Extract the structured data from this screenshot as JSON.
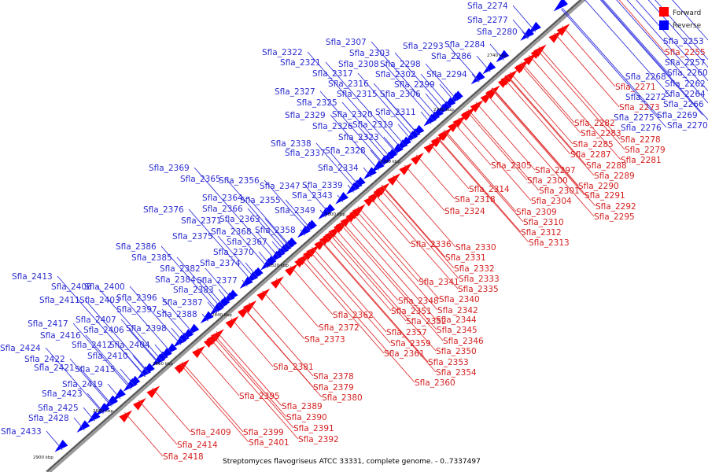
{
  "legend": [
    {
      "label": "Forward",
      "color": "#ff0000"
    },
    {
      "label": "Reverse",
      "color": "#0000ff"
    }
  ],
  "caption": "Streptomyces flavogriseus ATCC 33331, complete genome. - 0..7337497",
  "scale_labels": [
    "2740 kbp",
    "2760 kbp",
    "2780 kbp",
    "2800 kbp",
    "2820 kbp",
    "2840 kbp",
    "2860 kbp",
    "2880 kbp",
    "2900 kbp"
  ],
  "reverse_genes": [
    "Sfla_2253",
    "Sfla_2257",
    "Sfla_2260",
    "Sfla_2262",
    "Sfla_2264",
    "Sfla_2266",
    "Sfla_2268",
    "Sfla_2269",
    "Sfla_2270",
    "Sfla_2272",
    "Sfla_2274",
    "Sfla_2275",
    "Sfla_2276",
    "Sfla_2277",
    "Sfla_2280",
    "Sfla_2284",
    "Sfla_2286",
    "Sfla_2293",
    "Sfla_2294",
    "Sfla_2298",
    "Sfla_2299",
    "Sfla_2302",
    "Sfla_2303",
    "Sfla_2306",
    "Sfla_2307",
    "Sfla_2308",
    "Sfla_2311",
    "Sfla_2315",
    "Sfla_2316",
    "Sfla_2317",
    "Sfla_2319",
    "Sfla_2320",
    "Sfla_2321",
    "Sfla_2322",
    "Sfla_2323",
    "Sfla_2325",
    "Sfla_2326",
    "Sfla_2327",
    "Sfla_2328",
    "Sfla_2329",
    "Sfla_2334",
    "Sfla_2337",
    "Sfla_2338",
    "Sfla_2339",
    "Sfla_2343",
    "Sfla_2347",
    "Sfla_2349",
    "Sfla_2355",
    "Sfla_2356",
    "Sfla_2358",
    "Sfla_2363",
    "Sfla_2364",
    "Sfla_2365",
    "Sfla_2366",
    "Sfla_2367",
    "Sfla_2368",
    "Sfla_2369",
    "Sfla_2370",
    "Sfla_2371",
    "Sfla_2374",
    "Sfla_2375",
    "Sfla_2376",
    "Sfla_2377",
    "Sfla_2382",
    "Sfla_2383",
    "Sfla_2384",
    "Sfla_2385",
    "Sfla_2386",
    "Sfla_2387",
    "Sfla_2388",
    "Sfla_2396",
    "Sfla_2397",
    "Sfla_2398",
    "Sfla_2400",
    "Sfla_2403",
    "Sfla_2404",
    "Sfla_2406",
    "Sfla_2407",
    "Sfla_2408",
    "Sfla_2410",
    "Sfla_2411",
    "Sfla_2412",
    "Sfla_2413",
    "Sfla_2415",
    "Sfla_2416",
    "Sfla_2417",
    "Sfla_2419",
    "Sfla_2421",
    "Sfla_2422",
    "Sfla_2423",
    "Sfla_2424",
    "Sfla_2425",
    "Sfla_2428",
    "Sfla_2433"
  ],
  "forward_genes": [
    "Sfla_2255",
    "Sfla_2271",
    "Sfla_2273",
    "Sfla_2278",
    "Sfla_2279",
    "Sfla_2281",
    "Sfla_2282",
    "Sfla_2283",
    "Sfla_2285",
    "Sfla_2287",
    "Sfla_2288",
    "Sfla_2289",
    "Sfla_2290",
    "Sfla_2291",
    "Sfla_2292",
    "Sfla_2295",
    "Sfla_2297",
    "Sfla_2300",
    "Sfla_2301",
    "Sfla_2304",
    "Sfla_2305",
    "Sfla_2309",
    "Sfla_2310",
    "Sfla_2312",
    "Sfla_2313",
    "Sfla_2314",
    "Sfla_2318",
    "Sfla_2324",
    "Sfla_2330",
    "Sfla_2331",
    "Sfla_2332",
    "Sfla_2333",
    "Sfla_2335",
    "Sfla_2336",
    "Sfla_2340",
    "Sfla_2341",
    "Sfla_2342",
    "Sfla_2344",
    "Sfla_2345",
    "Sfla_2346",
    "Sfla_2348",
    "Sfla_2350",
    "Sfla_2351",
    "Sfla_2352",
    "Sfla_2353",
    "Sfla_2354",
    "Sfla_2357",
    "Sfla_2359",
    "Sfla_2360",
    "Sfla_2361",
    "Sfla_2362",
    "Sfla_2372",
    "Sfla_2373",
    "Sfla_2378",
    "Sfla_2379",
    "Sfla_2380",
    "Sfla_2381",
    "Sfla_2389",
    "Sfla_2390",
    "Sfla_2391",
    "Sfla_2392",
    "Sfla_2395",
    "Sfla_2399",
    "Sfla_2401",
    "Sfla_2409",
    "Sfla_2414",
    "Sfla_2418"
  ]
}
